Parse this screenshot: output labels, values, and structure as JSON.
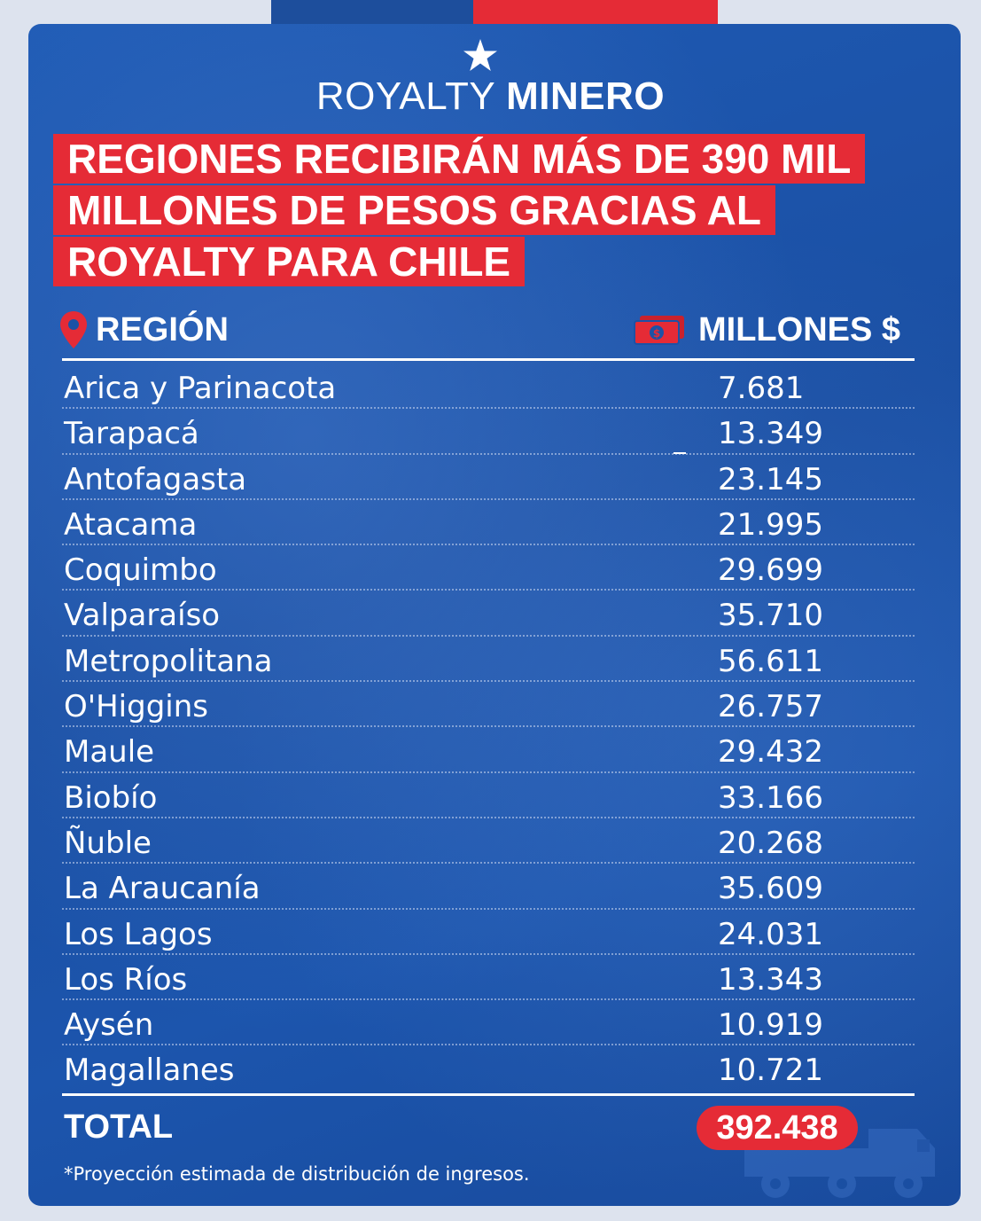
{
  "brand": {
    "light": "ROYALTY",
    "bold": "MINERO"
  },
  "headline": {
    "line1": "REGIONES RECIBIRÁN MÁS DE 390 MIL",
    "line2": "MILLONES DE PESOS GRACIAS AL",
    "line3": "ROYALTY PARA CHILE"
  },
  "table": {
    "col_region": "REGIÓN",
    "col_amount": "MILLONES $",
    "rows": [
      {
        "region": "Arica y Parinacota",
        "amount": "7.681"
      },
      {
        "region": "Tarapacá",
        "amount": "13.349"
      },
      {
        "region": "Antofagasta",
        "amount": "23.145"
      },
      {
        "region": "Atacama",
        "amount": "21.995"
      },
      {
        "region": "Coquimbo",
        "amount": "29.699"
      },
      {
        "region": "Valparaíso",
        "amount": "35.710"
      },
      {
        "region": "Metropolitana",
        "amount": "56.611"
      },
      {
        "region": "O'Higgins",
        "amount": "26.757"
      },
      {
        "region": "Maule",
        "amount": "29.432"
      },
      {
        "region": "Biobío",
        "amount": "33.166"
      },
      {
        "region": "Ñuble",
        "amount": "20.268"
      },
      {
        "region": "La Araucanía",
        "amount": "35.609"
      },
      {
        "region": "Los Lagos",
        "amount": "24.031"
      },
      {
        "region": "Los Ríos",
        "amount": "13.343"
      },
      {
        "region": "Aysén",
        "amount": "10.919"
      },
      {
        "region": "Magallanes",
        "amount": "10.721"
      }
    ],
    "total_label": "TOTAL",
    "total_value": "392.438"
  },
  "footnote": "*Proyección estimada de distribución de ingresos.",
  "colors": {
    "blue": "#1d4e9c",
    "red": "#e52b36"
  },
  "icons": {
    "star": "star-icon",
    "pin": "location-pin-icon",
    "cash": "banknote-icon",
    "truck": "mining-truck-icon"
  }
}
